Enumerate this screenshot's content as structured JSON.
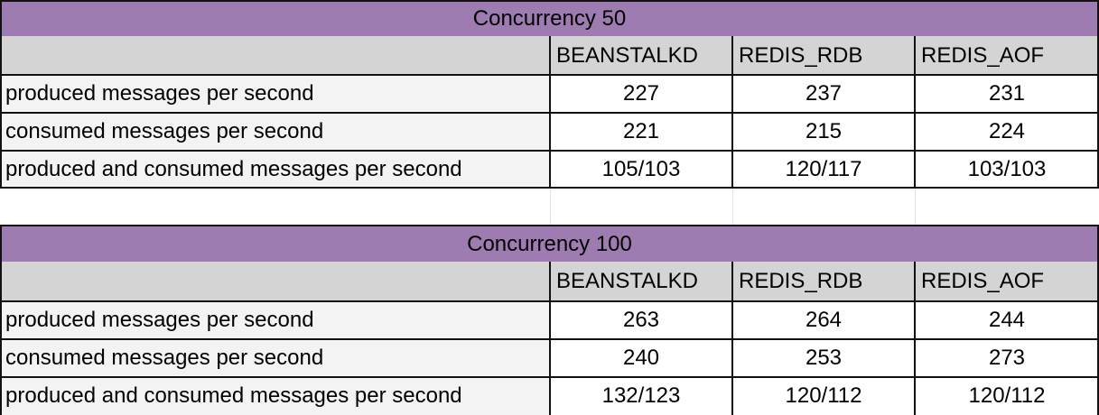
{
  "tables": [
    {
      "title": "Concurrency 50",
      "headers": [
        "",
        "BEANSTALKD",
        "REDIS_RDB",
        "REDIS_AOF"
      ],
      "rows": [
        {
          "label": "produced messages per second",
          "values": [
            "227",
            "237",
            "231"
          ]
        },
        {
          "label": "consumed messages per second",
          "values": [
            "221",
            "215",
            "224"
          ]
        },
        {
          "label": "produced and consumed messages per second",
          "values": [
            "105/103",
            "120/117",
            "103/103"
          ]
        }
      ]
    },
    {
      "title": "Concurrency 100",
      "headers": [
        "",
        "BEANSTALKD",
        "REDIS_RDB",
        "REDIS_AOF"
      ],
      "rows": [
        {
          "label": "produced messages per second",
          "values": [
            "263",
            "264",
            "244"
          ]
        },
        {
          "label": "consumed messages per second",
          "values": [
            "240",
            "253",
            "273"
          ]
        },
        {
          "label": "produced and consumed messages per second",
          "values": [
            "132/123",
            "120/112",
            "120/112"
          ]
        }
      ]
    }
  ],
  "colors": {
    "title_bg": "#9e7bb0",
    "header_bg": "#d4d4d4",
    "label_bg": "#f3f3f3",
    "border": "#111111"
  }
}
